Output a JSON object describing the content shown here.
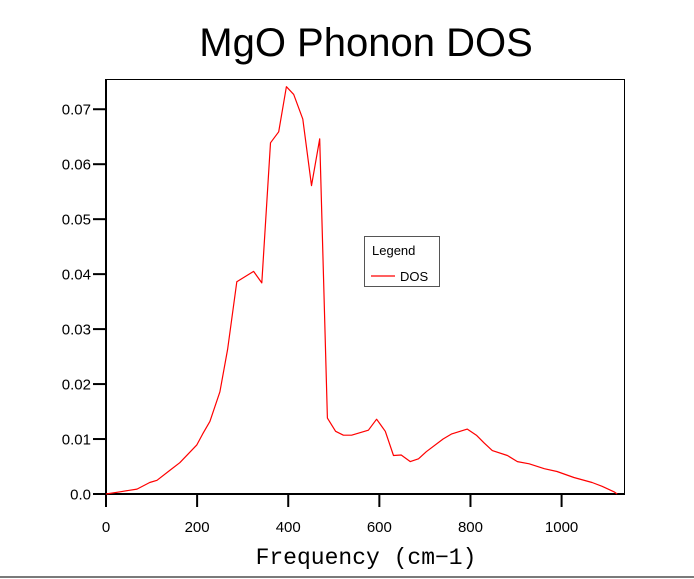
{
  "chart_data": {
    "type": "line",
    "title": "MgO Phonon DOS",
    "xlabel": "Frequency (cm−1)",
    "ylabel": "",
    "xlim": [
      0,
      1137
    ],
    "ylim": [
      0,
      0.0755
    ],
    "xticks": [
      0,
      200,
      400,
      600,
      800,
      1000
    ],
    "xtick_labels": [
      "0",
      "200",
      "400",
      "600",
      "800",
      "1000"
    ],
    "yticks": [
      0.0,
      0.01,
      0.02,
      0.03,
      0.04,
      0.05,
      0.06,
      0.07
    ],
    "ytick_labels": [
      "0.0",
      "0.01",
      "0.02",
      "0.03",
      "0.04",
      "0.05",
      "0.06",
      "0.07"
    ],
    "grid": false,
    "legend": {
      "title": "Legend",
      "position": "center-right",
      "entries": [
        "DOS"
      ]
    },
    "series": [
      {
        "name": "DOS",
        "color": "#ff0000",
        "x": [
          0,
          31,
          68,
          96,
          112,
          140,
          162,
          199,
          212,
          228,
          250,
          267,
          287,
          324,
          342,
          361,
          379,
          396,
          412,
          432,
          451,
          469,
          486,
          504,
          521,
          539,
          576,
          594,
          613,
          631,
          648,
          668,
          686,
          703,
          740,
          758,
          793,
          813,
          830,
          848,
          881,
          903,
          929,
          962,
          990,
          1027,
          1067,
          1089,
          1115,
          1122
        ],
        "y": [
          0,
          0.0004,
          0.0009,
          0.0021,
          0.0025,
          0.0043,
          0.0057,
          0.0089,
          0.0109,
          0.0132,
          0.0186,
          0.0263,
          0.0386,
          0.0405,
          0.0384,
          0.0639,
          0.0659,
          0.0741,
          0.0727,
          0.0682,
          0.0561,
          0.0646,
          0.0138,
          0.0114,
          0.0107,
          0.0107,
          0.0116,
          0.0136,
          0.0114,
          0.007,
          0.0071,
          0.0059,
          0.0064,
          0.0077,
          0.01,
          0.0109,
          0.0118,
          0.0107,
          0.0093,
          0.0079,
          0.007,
          0.0059,
          0.0055,
          0.0046,
          0.0041,
          0.003,
          0.0021,
          0.0014,
          0.0004,
          0
        ]
      }
    ]
  }
}
